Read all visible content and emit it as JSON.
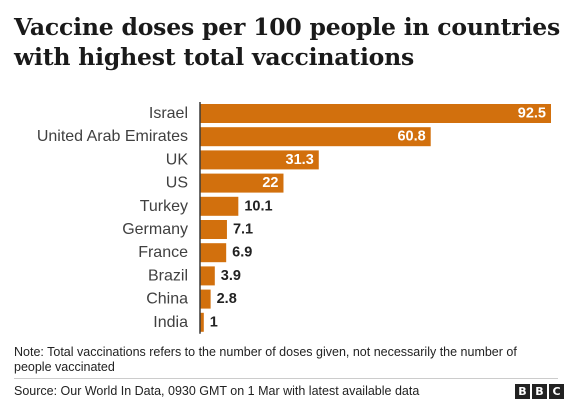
{
  "title": "Vaccine doses per 100 people in countries with highest total vaccinations",
  "note": "Note: Total vaccinations refers to the number of doses given, not necessarily the number of people vaccinated",
  "source": "Source: Our World In Data, 0930 GMT on 1 Mar with latest available data",
  "logo": [
    "B",
    "B",
    "C"
  ],
  "colors": {
    "bar": "#d2700d",
    "axis": "#3a3a3a",
    "label_inside": "#ffffff",
    "label_outside": "#222222"
  },
  "chart_data": {
    "type": "bar",
    "orientation": "horizontal",
    "title": "Vaccine doses per 100 people in countries with highest total vaccinations",
    "categories": [
      "Israel",
      "United Arab Emirates",
      "UK",
      "US",
      "Turkey",
      "Germany",
      "France",
      "Brazil",
      "China",
      "India"
    ],
    "values": [
      92.5,
      60.8,
      31.3,
      22,
      10.1,
      7.1,
      6.9,
      3.9,
      2.8,
      1
    ],
    "value_labels": [
      "92.5",
      "60.8",
      "31.3",
      "22",
      "10.1",
      "7.1",
      "6.9",
      "3.9",
      "2.8",
      "1"
    ],
    "xlim": [
      0,
      92.5
    ],
    "grid": false,
    "legend": "none"
  }
}
